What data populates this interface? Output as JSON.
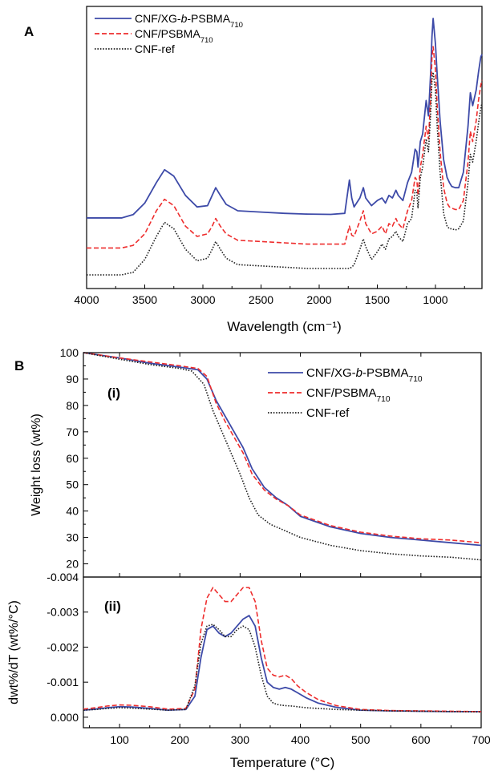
{
  "chart_data": [
    {
      "panel_label": "A",
      "type": "line",
      "xlabel": "Wavelength (cm⁻¹)",
      "xlim": [
        4000,
        600
      ],
      "xticks": [
        4000,
        3500,
        3000,
        2500,
        2000,
        1500,
        1000
      ],
      "y_ticks_shown": false,
      "legend": [
        {
          "name": "CNF/XG-b-PSBMA710",
          "parts": [
            [
              "CNF/XG-",
              ""
            ],
            [
              "b",
              "i"
            ],
            [
              "-PSBMA",
              ""
            ],
            [
              "710",
              "sub"
            ]
          ],
          "color": "#3d4aa8",
          "dash": "solid"
        },
        {
          "name": "CNF/PSBMA710",
          "parts": [
            [
              "CNF/PSBMA",
              ""
            ],
            [
              "710",
              "sub"
            ]
          ],
          "color": "#ee2d2d",
          "dash": "dashed"
        },
        {
          "name": "CNF-ref",
          "parts": [
            [
              "CNF-ref",
              ""
            ]
          ],
          "color": "#222222",
          "dash": "dotted"
        }
      ],
      "series": [
        {
          "name": "CNF/XG-b-PSBMA710",
          "color": "#3d4aa8",
          "dash": "solid",
          "x": [
            4000,
            3700,
            3600,
            3500,
            3400,
            3330,
            3250,
            3150,
            3050,
            2960,
            2920,
            2890,
            2850,
            2800,
            2700,
            2500,
            2300,
            2100,
            1900,
            1780,
            1740,
            1720,
            1700,
            1650,
            1620,
            1600,
            1550,
            1500,
            1460,
            1430,
            1400,
            1370,
            1340,
            1320,
            1280,
            1240,
            1205,
            1175,
            1160,
            1150,
            1130,
            1110,
            1080,
            1060,
            1040,
            1030,
            1020,
            1000,
            985,
            960,
            930,
            900,
            880,
            860,
            830,
            800,
            760,
            720,
            700,
            680,
            650,
            630,
            610,
            600
          ],
          "y": [
            0.222,
            0.222,
            0.235,
            0.28,
            0.36,
            0.41,
            0.385,
            0.31,
            0.265,
            0.27,
            0.31,
            0.34,
            0.31,
            0.275,
            0.25,
            0.245,
            0.24,
            0.237,
            0.236,
            0.24,
            0.37,
            0.3,
            0.265,
            0.3,
            0.34,
            0.3,
            0.27,
            0.29,
            0.3,
            0.28,
            0.31,
            0.3,
            0.33,
            0.31,
            0.29,
            0.36,
            0.4,
            0.49,
            0.48,
            0.42,
            0.52,
            0.55,
            0.68,
            0.62,
            0.8,
            0.93,
            1.0,
            0.9,
            0.78,
            0.6,
            0.45,
            0.38,
            0.36,
            0.345,
            0.34,
            0.34,
            0.4,
            0.58,
            0.71,
            0.66,
            0.72,
            0.79,
            0.85,
            0.86
          ]
        },
        {
          "name": "CNF/PSBMA710",
          "color": "#ee2d2d",
          "dash": "dashed",
          "x": [
            4000,
            3700,
            3600,
            3500,
            3400,
            3330,
            3250,
            3150,
            3050,
            2960,
            2920,
            2890,
            2850,
            2800,
            2700,
            2500,
            2300,
            2100,
            1900,
            1780,
            1740,
            1720,
            1700,
            1650,
            1620,
            1600,
            1550,
            1500,
            1460,
            1430,
            1400,
            1370,
            1340,
            1320,
            1280,
            1240,
            1205,
            1175,
            1160,
            1150,
            1130,
            1110,
            1080,
            1060,
            1040,
            1030,
            1020,
            1000,
            985,
            960,
            930,
            900,
            880,
            860,
            830,
            800,
            760,
            720,
            700,
            680,
            650,
            630,
            610,
            600
          ],
          "y": [
            0.105,
            0.105,
            0.115,
            0.16,
            0.25,
            0.295,
            0.27,
            0.19,
            0.15,
            0.16,
            0.19,
            0.22,
            0.19,
            0.16,
            0.135,
            0.13,
            0.125,
            0.12,
            0.12,
            0.12,
            0.19,
            0.155,
            0.15,
            0.21,
            0.25,
            0.2,
            0.16,
            0.17,
            0.19,
            0.16,
            0.2,
            0.19,
            0.22,
            0.2,
            0.18,
            0.25,
            0.29,
            0.38,
            0.37,
            0.31,
            0.42,
            0.47,
            0.58,
            0.53,
            0.7,
            0.85,
            0.89,
            0.8,
            0.66,
            0.48,
            0.34,
            0.28,
            0.265,
            0.26,
            0.255,
            0.255,
            0.29,
            0.44,
            0.56,
            0.52,
            0.6,
            0.68,
            0.74,
            0.76
          ]
        },
        {
          "name": "CNF-ref",
          "color": "#222222",
          "dash": "dotted",
          "x": [
            4000,
            3700,
            3600,
            3500,
            3400,
            3330,
            3250,
            3150,
            3050,
            2960,
            2920,
            2890,
            2850,
            2800,
            2700,
            2500,
            2300,
            2100,
            1900,
            1780,
            1740,
            1720,
            1700,
            1650,
            1620,
            1600,
            1550,
            1500,
            1460,
            1430,
            1400,
            1370,
            1340,
            1320,
            1280,
            1240,
            1205,
            1175,
            1160,
            1150,
            1130,
            1110,
            1080,
            1060,
            1040,
            1030,
            1020,
            1000,
            985,
            960,
            930,
            900,
            880,
            860,
            830,
            800,
            760,
            720,
            700,
            680,
            650,
            630,
            610,
            600
          ],
          "y": [
            0.0,
            0.0,
            0.01,
            0.06,
            0.15,
            0.205,
            0.18,
            0.1,
            0.055,
            0.065,
            0.1,
            0.13,
            0.1,
            0.065,
            0.04,
            0.035,
            0.03,
            0.025,
            0.025,
            0.025,
            0.025,
            0.03,
            0.04,
            0.1,
            0.14,
            0.11,
            0.06,
            0.09,
            0.12,
            0.1,
            0.14,
            0.15,
            0.17,
            0.15,
            0.13,
            0.2,
            0.22,
            0.33,
            0.32,
            0.26,
            0.38,
            0.42,
            0.53,
            0.48,
            0.64,
            0.76,
            0.79,
            0.72,
            0.58,
            0.4,
            0.24,
            0.19,
            0.18,
            0.18,
            0.175,
            0.18,
            0.21,
            0.36,
            0.47,
            0.44,
            0.52,
            0.59,
            0.65,
            0.67
          ]
        }
      ]
    },
    {
      "panel_label": "B",
      "sublabel": "(i)",
      "type": "line",
      "ylabel": "Weight loss (wt%)",
      "xlim": [
        40,
        700
      ],
      "ylim": [
        15,
        100
      ],
      "yticks": [
        20,
        30,
        40,
        50,
        60,
        70,
        80,
        90,
        100
      ],
      "legend": [
        {
          "name": "CNF/XG-b-PSBMA710",
          "parts": [
            [
              "CNF/XG-",
              ""
            ],
            [
              "b",
              "i"
            ],
            [
              "-PSBMA",
              ""
            ],
            [
              "710",
              "sub"
            ]
          ],
          "color": "#3d4aa8",
          "dash": "solid"
        },
        {
          "name": "CNF/PSBMA710",
          "parts": [
            [
              "CNF/PSBMA",
              ""
            ],
            [
              "710",
              "sub"
            ]
          ],
          "color": "#ee2d2d",
          "dash": "dashed"
        },
        {
          "name": "CNF-ref",
          "parts": [
            [
              "CNF-ref",
              ""
            ]
          ],
          "color": "#222222",
          "dash": "dotted"
        }
      ],
      "series": [
        {
          "name": "CNF/XG-b-PSBMA710",
          "color": "#3d4aa8",
          "dash": "solid",
          "x": [
            40,
            100,
            150,
            200,
            230,
            245,
            260,
            275,
            290,
            305,
            320,
            340,
            360,
            380,
            400,
            450,
            500,
            550,
            600,
            650,
            700
          ],
          "y": [
            100,
            98,
            96,
            94.5,
            93.5,
            90,
            82,
            76,
            70,
            64,
            56,
            49,
            45,
            42,
            38,
            34,
            31.5,
            30,
            29,
            28,
            27
          ]
        },
        {
          "name": "CNF/PSBMA710",
          "color": "#ee2d2d",
          "dash": "dashed",
          "x": [
            40,
            100,
            150,
            200,
            230,
            245,
            260,
            275,
            290,
            305,
            320,
            340,
            360,
            380,
            400,
            450,
            500,
            550,
            600,
            650,
            700
          ],
          "y": [
            100,
            98,
            96.5,
            95,
            94,
            91,
            81,
            74,
            68,
            62,
            54,
            48,
            44.5,
            42,
            38.5,
            34.5,
            32,
            30.5,
            29.5,
            29,
            28
          ]
        },
        {
          "name": "CNF-ref",
          "color": "#222222",
          "dash": "dotted",
          "x": [
            40,
            100,
            150,
            200,
            220,
            240,
            255,
            270,
            285,
            300,
            315,
            330,
            350,
            380,
            400,
            450,
            500,
            550,
            600,
            650,
            700
          ],
          "y": [
            100,
            97.5,
            95.5,
            94,
            93,
            88,
            78,
            70,
            62,
            54,
            45,
            38.5,
            35,
            32,
            30,
            27,
            25,
            23.8,
            23,
            22.5,
            21.5
          ]
        }
      ]
    },
    {
      "panel_label": "",
      "sublabel": "(ii)",
      "type": "line",
      "xlabel": "Temperature (°C)",
      "ylabel": "dwt%/dT (wt%/°C)",
      "xlim": [
        40,
        700
      ],
      "ylim": [
        0.0003,
        -0.004
      ],
      "xticks": [
        100,
        200,
        300,
        400,
        500,
        600,
        700
      ],
      "yticks": [
        0.0,
        -0.001,
        -0.002,
        -0.003,
        -0.004
      ],
      "ytick_labels": [
        "0.000",
        "-0.001",
        "-0.002",
        "-0.003",
        "-0.004"
      ],
      "series": [
        {
          "name": "CNF/XG-b-PSBMA710",
          "color": "#3d4aa8",
          "dash": "solid",
          "x": [
            40,
            60,
            80,
            100,
            120,
            150,
            180,
            210,
            225,
            235,
            245,
            255,
            265,
            275,
            285,
            295,
            305,
            315,
            325,
            335,
            345,
            355,
            365,
            375,
            385,
            395,
            410,
            430,
            460,
            500,
            550,
            600,
            650,
            700
          ],
          "y": [
            -0.0002,
            -0.00023,
            -0.00027,
            -0.0003,
            -0.00029,
            -0.00025,
            -0.0002,
            -0.00022,
            -0.0006,
            -0.0017,
            -0.0025,
            -0.0026,
            -0.0024,
            -0.0023,
            -0.0024,
            -0.0026,
            -0.0028,
            -0.0029,
            -0.0026,
            -0.0017,
            -0.001,
            -0.00085,
            -0.0008,
            -0.00085,
            -0.0008,
            -0.0007,
            -0.00055,
            -0.0004,
            -0.00028,
            -0.0002,
            -0.00018,
            -0.00017,
            -0.00016,
            -0.00016
          ]
        },
        {
          "name": "CNF/PSBMA710",
          "color": "#ee2d2d",
          "dash": "dashed",
          "x": [
            40,
            60,
            80,
            100,
            120,
            150,
            180,
            210,
            225,
            235,
            245,
            255,
            265,
            275,
            285,
            295,
            305,
            315,
            325,
            335,
            345,
            355,
            365,
            375,
            385,
            395,
            410,
            430,
            460,
            500,
            550,
            600,
            650,
            700
          ],
          "y": [
            -0.00023,
            -0.00027,
            -0.00032,
            -0.00035,
            -0.00034,
            -0.0003,
            -0.00023,
            -0.00025,
            -0.0008,
            -0.0025,
            -0.0034,
            -0.0037,
            -0.0035,
            -0.0033,
            -0.0033,
            -0.0035,
            -0.0037,
            -0.0037,
            -0.0033,
            -0.0022,
            -0.0014,
            -0.0012,
            -0.00115,
            -0.0012,
            -0.0011,
            -0.0009,
            -0.0007,
            -0.0005,
            -0.00033,
            -0.00022,
            -0.00019,
            -0.00018,
            -0.00017,
            -0.00016
          ]
        },
        {
          "name": "CNF-ref",
          "color": "#222222",
          "dash": "dotted",
          "x": [
            40,
            60,
            80,
            100,
            120,
            150,
            180,
            210,
            225,
            235,
            245,
            255,
            265,
            275,
            285,
            295,
            305,
            315,
            325,
            335,
            345,
            355,
            365,
            375,
            385,
            395,
            410,
            430,
            460,
            500,
            550,
            600,
            650,
            700
          ],
          "y": [
            -0.0002,
            -0.00022,
            -0.00025,
            -0.00027,
            -0.00026,
            -0.00023,
            -0.0002,
            -0.00022,
            -0.0009,
            -0.0021,
            -0.0026,
            -0.00265,
            -0.0025,
            -0.0023,
            -0.0023,
            -0.0025,
            -0.0026,
            -0.0025,
            -0.002,
            -0.0012,
            -0.0006,
            -0.0004,
            -0.00035,
            -0.00033,
            -0.00032,
            -0.0003,
            -0.00027,
            -0.00025,
            -0.00022,
            -0.0002,
            -0.00018,
            -0.00017,
            -0.00016,
            -0.00015
          ]
        }
      ]
    }
  ]
}
